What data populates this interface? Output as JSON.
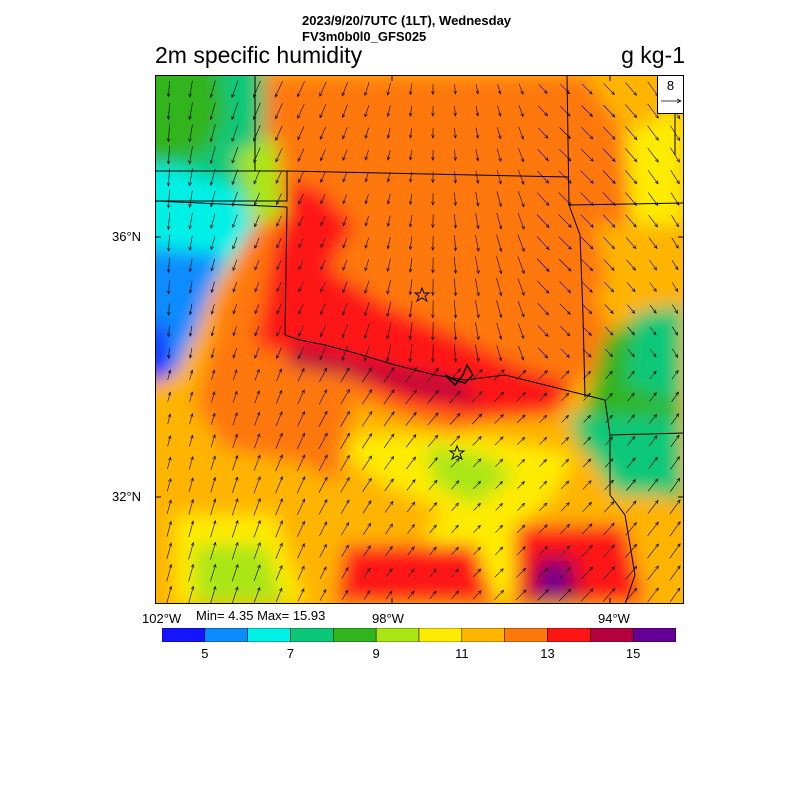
{
  "header": {
    "datetime": "2023/9/20/7UTC (1LT), Wednesday",
    "model": "FV3m0b0l0_GFS025",
    "variable": "2m specific humidity",
    "units": "g kg-1"
  },
  "axes": {
    "lat_labels": [
      "36°N",
      "32°N"
    ],
    "lon_labels": [
      "102°W",
      "98°W",
      "94°W"
    ]
  },
  "stats": {
    "min_max": "Min= 4.35 Max= 15.93"
  },
  "colorbar": {
    "labels": [
      "5",
      "7",
      "9",
      "11",
      "13",
      "15"
    ],
    "colors": [
      "#1414ff",
      "#0a8cff",
      "#00f0e6",
      "#0ac878",
      "#32b41e",
      "#aae614",
      "#ffeb00",
      "#ffb400",
      "#ff780a",
      "#ff1414",
      "#b4003c",
      "#640096"
    ]
  },
  "reference_vector": {
    "label": "8"
  },
  "markers": [
    "star",
    "star"
  ]
}
